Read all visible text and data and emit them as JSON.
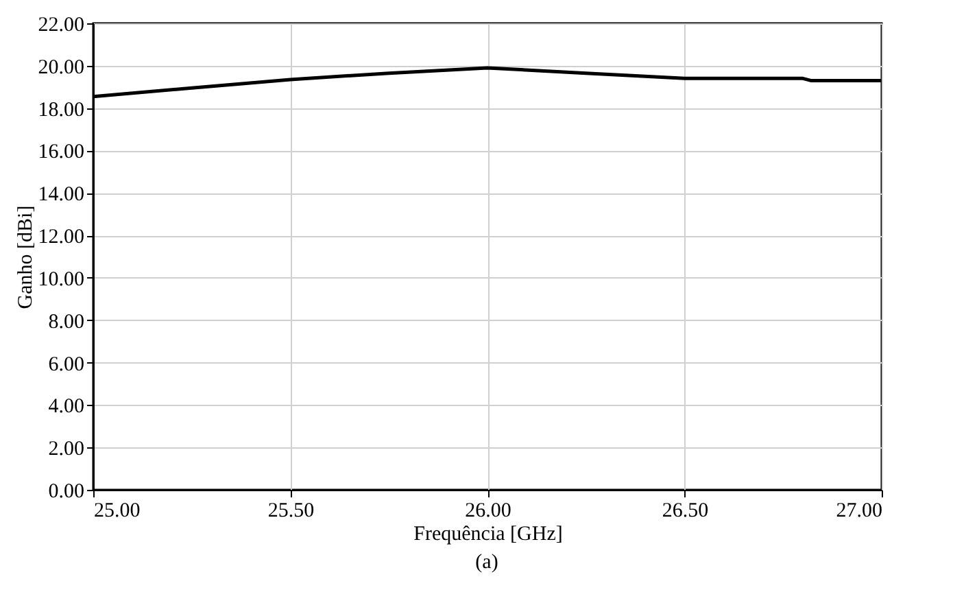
{
  "chart_data": {
    "type": "line",
    "xlabel": "Frequência [GHz]",
    "ylabel": "Ganho [dBi]",
    "annotations": [
      "(a)"
    ],
    "series": [
      {
        "color": "#000000",
        "x": [
          25.0,
          25.25,
          25.5,
          25.75,
          26.0,
          26.25,
          26.5,
          26.8,
          26.82,
          27.0
        ],
        "values": [
          18.55,
          18.95,
          19.35,
          19.65,
          19.9,
          19.65,
          19.4,
          19.4,
          19.3,
          19.3
        ]
      }
    ],
    "xlim": [
      25,
      27
    ],
    "ylim": [
      0,
      22
    ],
    "xticks": [
      {
        "value": 25,
        "label": "25.00"
      },
      {
        "value": 25.5,
        "label": "25.50"
      },
      {
        "value": 26,
        "label": "26.00"
      },
      {
        "value": 26.5,
        "label": "26.50"
      },
      {
        "value": 27,
        "label": "27.00"
      }
    ],
    "yticks": [
      {
        "value": 0,
        "label": "0.00"
      },
      {
        "value": 2,
        "label": "2.00"
      },
      {
        "value": 4,
        "label": "4.00"
      },
      {
        "value": 6,
        "label": "6.00"
      },
      {
        "value": 8,
        "label": "8.00"
      },
      {
        "value": 10,
        "label": "10.00"
      },
      {
        "value": 12,
        "label": "12.00"
      },
      {
        "value": 14,
        "label": "14.00"
      },
      {
        "value": 16,
        "label": "16.00"
      },
      {
        "value": 18,
        "label": "18.00"
      },
      {
        "value": 20,
        "label": "20.00"
      },
      {
        "value": 22,
        "label": "22.00"
      }
    ],
    "grid": true,
    "marker": "none",
    "line_style": "solid"
  }
}
